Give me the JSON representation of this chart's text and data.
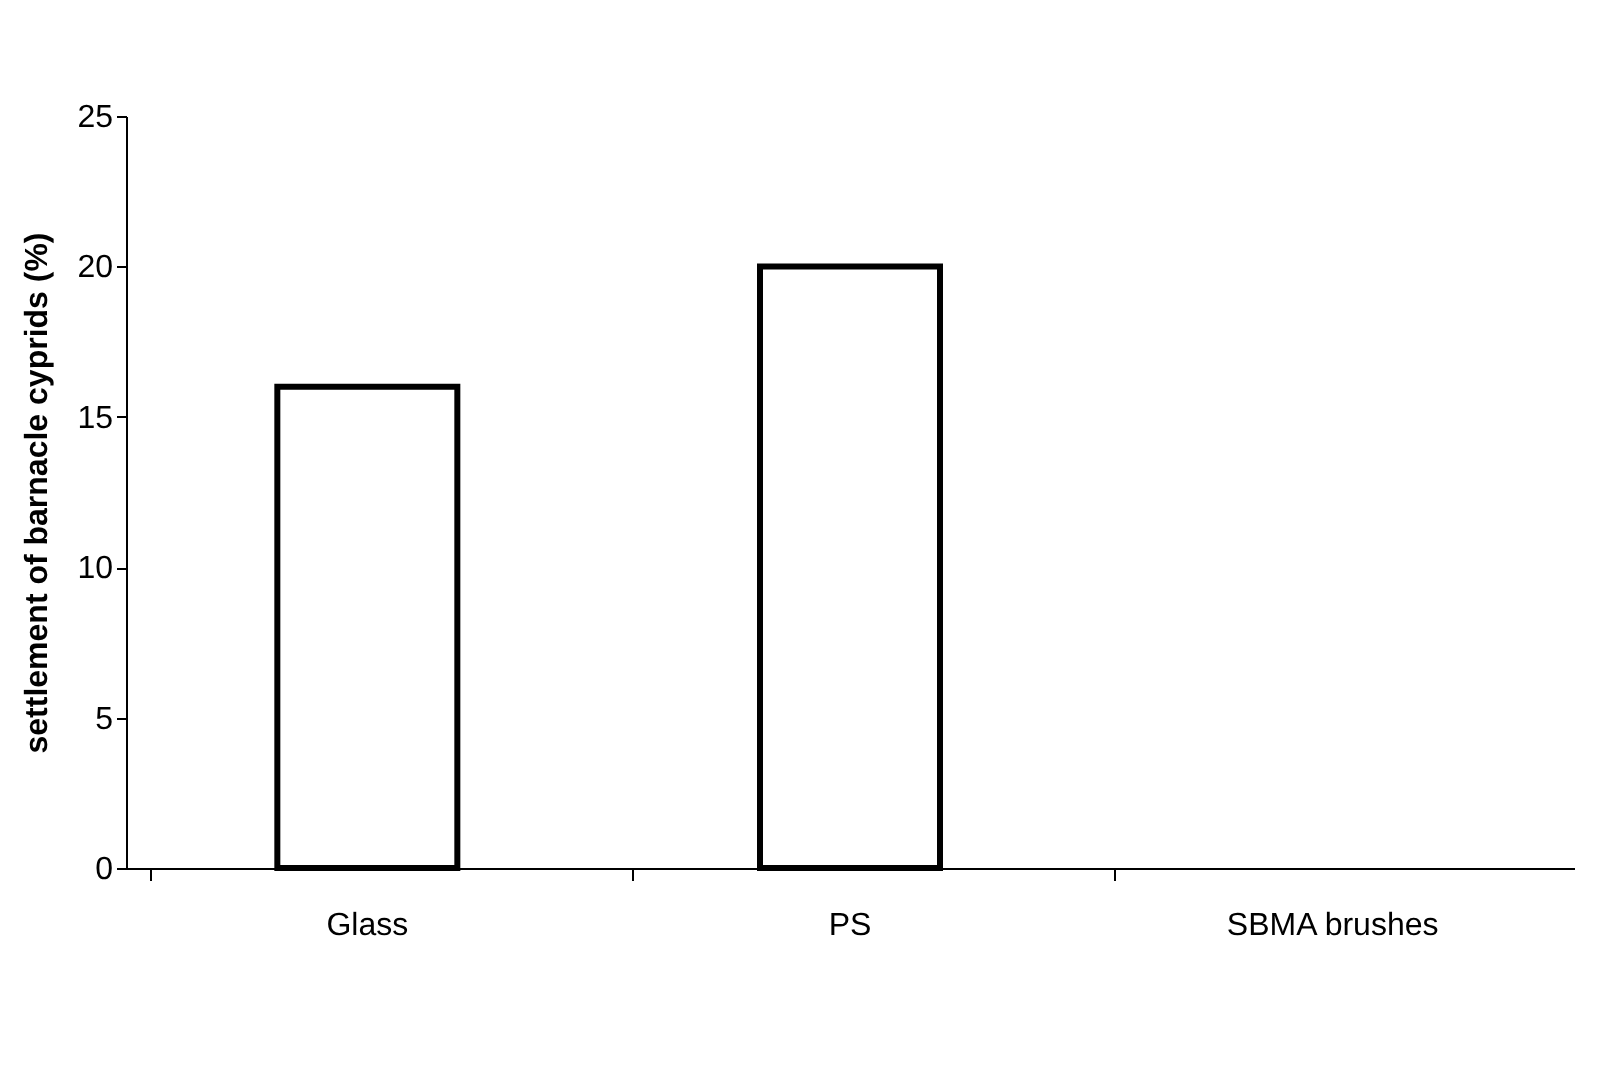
{
  "chart_data": {
    "type": "bar",
    "ylabel": "settlement of barnacle cyprids (%)",
    "categories": [
      "Glass",
      "PS",
      "SBMA brushes"
    ],
    "values": [
      16,
      20,
      0
    ],
    "color": "#ffffff",
    "ylim": [
      0,
      25
    ],
    "yticks": [
      0,
      5,
      10,
      15,
      20,
      25
    ],
    "grid": false
  }
}
